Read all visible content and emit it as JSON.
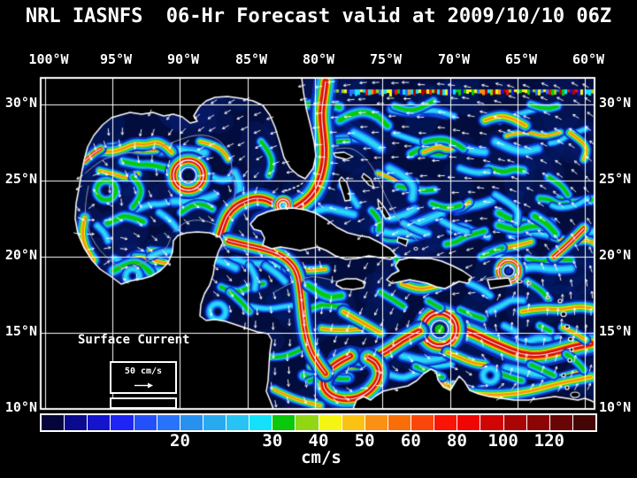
{
  "title": "NRL IASNFS  06-Hr Forecast valid at 2009/10/10 06Z",
  "axes": {
    "top_longitude_labels": [
      "100°W",
      "95°W",
      "90°W",
      "85°W",
      "80°W",
      "75°W",
      "70°W",
      "65°W",
      "60°W"
    ],
    "left_latitude_labels": [
      "30°N",
      "25°N",
      "20°N",
      "15°N",
      "10°N"
    ],
    "right_latitude_labels": [
      "30°N",
      "25°N",
      "20°N",
      "15°N",
      "10°N"
    ]
  },
  "legend": {
    "title": "Surface Current",
    "reference_label": "50 cm/s"
  },
  "colorbar": {
    "unit_label": "cm/s",
    "tick_labels": [
      "20",
      "30",
      "40",
      "50",
      "60",
      "80",
      "100",
      "120"
    ],
    "tick_boundary_cells": [
      6,
      10,
      12,
      14,
      16,
      18,
      20,
      22
    ],
    "cell_colors": [
      "#05053c",
      "#0a0a8f",
      "#1414cd",
      "#1e24f5",
      "#2450fa",
      "#2873fa",
      "#2891f0",
      "#28aaf0",
      "#28c3f5",
      "#14e1fa",
      "#0ac80a",
      "#91d714",
      "#f5f514",
      "#fac314",
      "#fa9114",
      "#fa6e0a",
      "#fa460a",
      "#fa1405",
      "#f00505",
      "#d20505",
      "#aa0505",
      "#8c0505",
      "#690505",
      "#440505"
    ]
  },
  "colors": {
    "background": "#000000",
    "ocean_base": "#020d3e",
    "grid": "#ffffff",
    "coastline": "#ffffff",
    "bathymetry_contour": "#8a94a6",
    "text": "#ffffff"
  },
  "chart_data": {
    "type": "heatmap",
    "title": "NRL IASNFS 06-Hr Forecast valid at 2009/10/10 06Z",
    "variable": "Sea surface current speed with streamlines and velocity vectors",
    "unit": "cm/s",
    "region": "Gulf of Mexico, Caribbean Sea and western North Atlantic",
    "x_axis": {
      "label": "Longitude",
      "ticks": [
        "100°W",
        "95°W",
        "90°W",
        "85°W",
        "80°W",
        "75°W",
        "70°W",
        "65°W",
        "60°W"
      ],
      "position": "top",
      "range_deg_w": [
        100.3,
        59.3
      ]
    },
    "y_axis": {
      "label": "Latitude",
      "ticks": [
        "30°N",
        "25°N",
        "20°N",
        "15°N",
        "10°N"
      ],
      "sides": [
        "left",
        "right"
      ],
      "range_deg_n": [
        10,
        31.3
      ]
    },
    "grid": true,
    "colorbar": {
      "orientation": "horizontal",
      "cells": 24,
      "tick_values": [
        20,
        30,
        40,
        50,
        60,
        80,
        100,
        120
      ],
      "tick_boundary_cells": [
        6,
        10,
        12,
        14,
        16,
        18,
        20,
        22
      ],
      "unit": "cm/s",
      "low_color": "dark navy (calm, <10 cm/s)",
      "high_color": "dark maroon (>130 cm/s)"
    },
    "reference_vector": {
      "label": "50 cm/s",
      "legend_title": "Surface Current"
    },
    "features": [
      {
        "name": "Loop Current anticyclonic eddy with white spiral streamline",
        "lon": "89.5°W",
        "lat": "25.3°N",
        "speed": ">120 cm/s"
      },
      {
        "name": "Yucatan Current / Loop Current jet",
        "lon": "86°W",
        "lat": "21-24°N",
        "speed": ">100 cm/s"
      },
      {
        "name": "Florida Current / Gulf Stream along 80°W flowing north past Florida",
        "lon": "80°W",
        "lat": "24-31°N",
        "speed": ">100 cm/s"
      },
      {
        "name": "Caribbean Current flowing westward",
        "lat": "13-16°N",
        "speed": "60-120 cm/s"
      },
      {
        "name": "Caribbean anticyclonic eddy ring",
        "lon": "75.5°W",
        "lat": "15°N",
        "speed": ">120 cm/s"
      },
      {
        "name": "Panama-Colombia Gyre loop",
        "lon": "79°W",
        "lat": "10-13°N",
        "speed": "80-120 cm/s"
      },
      {
        "name": "Atlantic eddy north of Hispaniola",
        "lon": "65.5°W",
        "lat": "19°N",
        "speed": "~100 cm/s"
      },
      {
        "name": "Coastal jet along Venezuela/Colombia coast",
        "lat": "11°N",
        "speed": "60-90 cm/s"
      },
      {
        "name": "Western Gulf cyclonic eddies",
        "lon": "96°W",
        "lat": "24-25°N",
        "speed": "30-60 cm/s"
      },
      {
        "name": "Model open-boundary noise band at northern edge",
        "lat": "31°N"
      }
    ],
    "background": "speeds < 10 cm/s shown as dark navy ocean; land masked black with white coastlines and gray shelf-break contours; white arrows show current direction"
  }
}
